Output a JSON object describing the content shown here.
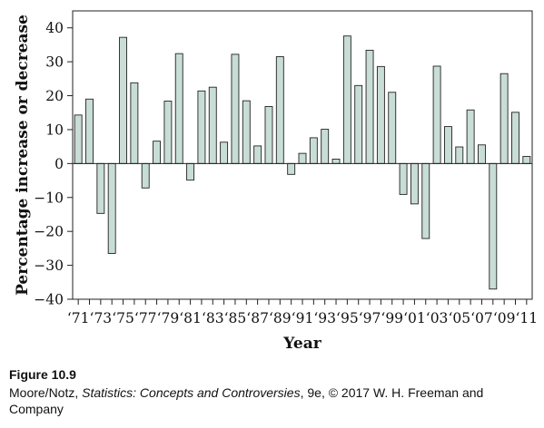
{
  "chart_data": {
    "type": "bar",
    "title": "",
    "xlabel": "Year",
    "ylabel": "Percentage increase or decrease",
    "ylim": [
      -40,
      45
    ],
    "yticks": [
      -40,
      -30,
      -20,
      -10,
      0,
      10,
      20,
      30,
      40
    ],
    "ytick_labels": [
      "−40",
      "−30",
      "−20",
      "−10",
      "0",
      "10",
      "20",
      "30",
      "40"
    ],
    "categories": [
      "1971",
      "1972",
      "1973",
      "1974",
      "1975",
      "1976",
      "1977",
      "1978",
      "1979",
      "1980",
      "1981",
      "1982",
      "1983",
      "1984",
      "1985",
      "1986",
      "1987",
      "1988",
      "1989",
      "1990",
      "1991",
      "1992",
      "1993",
      "1994",
      "1995",
      "1996",
      "1997",
      "1998",
      "1999",
      "2000",
      "2001",
      "2002",
      "2003",
      "2004",
      "2005",
      "2006",
      "2007",
      "2008",
      "2009",
      "2010",
      "2011"
    ],
    "values": [
      14.3,
      19.0,
      -14.7,
      -26.5,
      37.2,
      23.8,
      -7.2,
      6.6,
      18.4,
      32.4,
      -4.9,
      21.4,
      22.5,
      6.3,
      32.2,
      18.5,
      5.2,
      16.8,
      31.5,
      -3.2,
      3.0,
      7.6,
      10.1,
      1.3,
      37.6,
      23.0,
      33.4,
      28.6,
      21.0,
      -9.1,
      -11.9,
      -22.1,
      28.7,
      10.9,
      4.9,
      15.8,
      5.5,
      -37.0,
      26.5,
      15.1,
      2.1
    ],
    "xtick_labels": [
      "‘71",
      "‘73",
      "‘75",
      "‘77",
      "‘79",
      "‘81",
      "‘83",
      "‘85",
      "‘87",
      "‘89",
      "‘91",
      "‘93",
      "‘95",
      "‘97",
      "‘99",
      "‘01",
      "‘03",
      "‘05",
      "‘07",
      "‘09",
      "‘11"
    ],
    "xtick_every": 2,
    "grid": false,
    "colors": {
      "bar_fill": "#c8ddd6",
      "bar_stroke": "#222222",
      "axis": "#222222"
    }
  },
  "caption": {
    "figure_label": "Figure 10.9",
    "credit_prefix": "Moore/Notz, ",
    "credit_title": "Statistics: Concepts and Controversies",
    "credit_suffix": ", 9e, © 2017 W. H. Freeman and Company"
  }
}
